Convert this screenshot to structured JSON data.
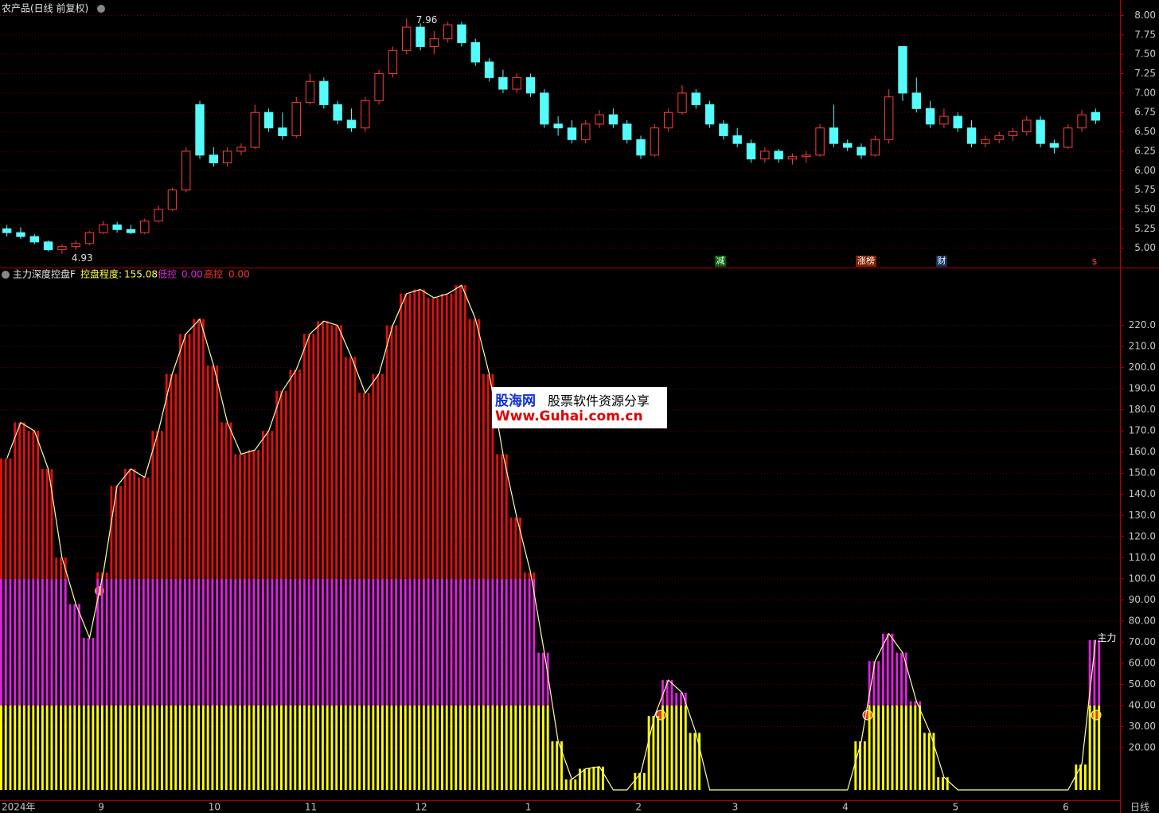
{
  "chart_data": [
    {
      "type": "candlestick",
      "title": "农产品(日线 前复权)",
      "categories": [
        "2024年",
        null,
        null,
        null,
        null,
        null,
        null,
        "9",
        null,
        null,
        null,
        null,
        null,
        null,
        null,
        "10",
        null,
        null,
        null,
        null,
        null,
        null,
        "11",
        null,
        null,
        null,
        null,
        null,
        null,
        null,
        "12",
        null,
        null,
        null,
        null,
        null,
        null,
        null,
        "1",
        null,
        null,
        null,
        null,
        null,
        null,
        null,
        "2",
        null,
        null,
        null,
        null,
        null,
        null,
        "3",
        null,
        null,
        null,
        null,
        null,
        null,
        null,
        "4",
        null,
        null,
        null,
        null,
        null,
        null,
        null,
        "5",
        null,
        null,
        null,
        null,
        null,
        null,
        null,
        "6",
        null,
        null
      ],
      "ohlc": [
        [
          5.25,
          5.3,
          5.15,
          5.2
        ],
        [
          5.2,
          5.27,
          5.12,
          5.15
        ],
        [
          5.15,
          5.18,
          5.05,
          5.08
        ],
        [
          5.08,
          5.1,
          4.96,
          4.98
        ],
        [
          4.98,
          5.05,
          4.93,
          5.02
        ],
        [
          5.02,
          5.1,
          4.98,
          5.06
        ],
        [
          5.06,
          5.22,
          5.04,
          5.2
        ],
        [
          5.2,
          5.35,
          5.18,
          5.3
        ],
        [
          5.3,
          5.34,
          5.2,
          5.24
        ],
        [
          5.24,
          5.3,
          5.18,
          5.2
        ],
        [
          5.2,
          5.38,
          5.18,
          5.35
        ],
        [
          5.35,
          5.55,
          5.33,
          5.5
        ],
        [
          5.5,
          5.78,
          5.48,
          5.75
        ],
        [
          5.75,
          6.3,
          5.72,
          6.25
        ],
        [
          6.85,
          6.9,
          6.15,
          6.2
        ],
        [
          6.2,
          6.3,
          6.05,
          6.1
        ],
        [
          6.1,
          6.3,
          6.05,
          6.25
        ],
        [
          6.25,
          6.35,
          6.2,
          6.3
        ],
        [
          6.3,
          6.85,
          6.28,
          6.75
        ],
        [
          6.75,
          6.8,
          6.5,
          6.55
        ],
        [
          6.55,
          6.75,
          6.4,
          6.45
        ],
        [
          6.45,
          6.95,
          6.42,
          6.88
        ],
        [
          6.88,
          7.25,
          6.85,
          7.15
        ],
        [
          7.15,
          7.2,
          6.8,
          6.85
        ],
        [
          6.85,
          6.9,
          6.6,
          6.65
        ],
        [
          6.65,
          6.8,
          6.5,
          6.55
        ],
        [
          6.55,
          6.95,
          6.5,
          6.9
        ],
        [
          6.9,
          7.3,
          6.85,
          7.25
        ],
        [
          7.25,
          7.6,
          7.2,
          7.55
        ],
        [
          7.55,
          7.96,
          7.5,
          7.85
        ],
        [
          7.85,
          7.9,
          7.55,
          7.6
        ],
        [
          7.6,
          7.8,
          7.5,
          7.7
        ],
        [
          7.7,
          7.92,
          7.65,
          7.88
        ],
        [
          7.88,
          7.92,
          7.6,
          7.65
        ],
        [
          7.65,
          7.7,
          7.35,
          7.4
        ],
        [
          7.4,
          7.45,
          7.15,
          7.2
        ],
        [
          7.2,
          7.3,
          7.0,
          7.05
        ],
        [
          7.05,
          7.25,
          7.0,
          7.2
        ],
        [
          7.2,
          7.25,
          6.95,
          7.0
        ],
        [
          7.0,
          7.05,
          6.55,
          6.6
        ],
        [
          6.6,
          6.7,
          6.45,
          6.55
        ],
        [
          6.55,
          6.65,
          6.35,
          6.4
        ],
        [
          6.4,
          6.65,
          6.35,
          6.6
        ],
        [
          6.6,
          6.78,
          6.55,
          6.72
        ],
        [
          6.72,
          6.8,
          6.55,
          6.6
        ],
        [
          6.6,
          6.65,
          6.35,
          6.4
        ],
        [
          6.4,
          6.45,
          6.15,
          6.2
        ],
        [
          6.2,
          6.6,
          6.18,
          6.55
        ],
        [
          6.55,
          6.8,
          6.5,
          6.75
        ],
        [
          6.75,
          7.1,
          6.72,
          7.0
        ],
        [
          7.0,
          7.05,
          6.8,
          6.85
        ],
        [
          6.85,
          6.9,
          6.55,
          6.6
        ],
        [
          6.6,
          6.65,
          6.4,
          6.45
        ],
        [
          6.45,
          6.55,
          6.3,
          6.35
        ],
        [
          6.35,
          6.4,
          6.1,
          6.15
        ],
        [
          6.15,
          6.3,
          6.1,
          6.25
        ],
        [
          6.25,
          6.28,
          6.1,
          6.15
        ],
        [
          6.15,
          6.22,
          6.08,
          6.18
        ],
        [
          6.18,
          6.25,
          6.1,
          6.2
        ],
        [
          6.2,
          6.6,
          6.18,
          6.55
        ],
        [
          6.55,
          6.85,
          6.3,
          6.35
        ],
        [
          6.35,
          6.4,
          6.25,
          6.3
        ],
        [
          6.3,
          6.35,
          6.15,
          6.2
        ],
        [
          6.2,
          6.45,
          6.18,
          6.4
        ],
        [
          6.4,
          7.05,
          6.35,
          6.95
        ],
        [
          7.6,
          7.6,
          6.9,
          7.0
        ],
        [
          7.0,
          7.2,
          6.75,
          6.8
        ],
        [
          6.8,
          6.9,
          6.55,
          6.6
        ],
        [
          6.6,
          6.8,
          6.55,
          6.7
        ],
        [
          6.7,
          6.75,
          6.5,
          6.55
        ],
        [
          6.55,
          6.65,
          6.3,
          6.35
        ],
        [
          6.35,
          6.45,
          6.3,
          6.4
        ],
        [
          6.4,
          6.5,
          6.35,
          6.45
        ],
        [
          6.45,
          6.55,
          6.38,
          6.5
        ],
        [
          6.5,
          6.7,
          6.45,
          6.65
        ],
        [
          6.65,
          6.7,
          6.3,
          6.35
        ],
        [
          6.35,
          6.4,
          6.22,
          6.3
        ],
        [
          6.3,
          6.6,
          6.28,
          6.55
        ],
        [
          6.55,
          6.78,
          6.5,
          6.72
        ],
        [
          6.75,
          6.8,
          6.6,
          6.65
        ]
      ],
      "up_color": "#ff3c3c",
      "down_color": "#54fcfc",
      "high_label": "7.96",
      "low_label": "4.93",
      "events": [
        "减",
        "涨榜",
        "财",
        "$"
      ],
      "ylim": [
        4.75,
        8.2
      ],
      "yticks": [
        {
          "value": 5,
          "label": "5.00"
        },
        {
          "value": 5.25,
          "label": "5.25"
        },
        {
          "value": 5.5,
          "label": "5.50"
        },
        {
          "value": 5.75,
          "label": "5.75"
        },
        {
          "value": 6,
          "label": "6.00"
        },
        {
          "value": 6.25,
          "label": "6.25"
        },
        {
          "value": 6.5,
          "label": "6.50"
        },
        {
          "value": 6.75,
          "label": "6.75"
        },
        {
          "value": 7,
          "label": "7.00"
        },
        {
          "value": 7.25,
          "label": "7.25"
        },
        {
          "value": 7.5,
          "label": "7.50"
        },
        {
          "value": 7.75,
          "label": "7.75"
        },
        {
          "value": 8,
          "label": "8.00"
        }
      ],
      "grid": true
    },
    {
      "type": "band-bar",
      "title": "主力深度控盘F",
      "legend": [
        {
          "name": "控盘程度:",
          "value": "155.08"
        },
        {
          "name": "低控",
          "value": "0.00"
        },
        {
          "name": "高控",
          "value": "0.00"
        }
      ],
      "series": [
        {
          "name": "主力",
          "color": "#ffffa0",
          "values": [
            157,
            174,
            170,
            152,
            110,
            88,
            72,
            103,
            144,
            152,
            148,
            170,
            197,
            216,
            223,
            201,
            174,
            159,
            161,
            170,
            189,
            199,
            216,
            222,
            220,
            205,
            188,
            197,
            220,
            235,
            237,
            233,
            235,
            239,
            223,
            197,
            159,
            129,
            103,
            65,
            23,
            5,
            10,
            11,
            0,
            0,
            8,
            35,
            52,
            46,
            27,
            0,
            0,
            0,
            0,
            0,
            0,
            0,
            0,
            0,
            0,
            0,
            23,
            61,
            74,
            65,
            42,
            27,
            6,
            0,
            0,
            0,
            0,
            0,
            0,
            0,
            0,
            0,
            12,
            71
          ]
        }
      ],
      "bands": [
        40,
        100
      ],
      "band_colors": [
        "#ffff00",
        "#e020e0",
        "#e01010"
      ],
      "ylim": [
        0,
        247
      ],
      "yticks": [
        {
          "value": 20,
          "label": "20.00"
        },
        {
          "value": 30,
          "label": "30.00"
        },
        {
          "value": 40,
          "label": "40.00"
        },
        {
          "value": 50,
          "label": "50.00"
        },
        {
          "value": 60,
          "label": "60.00"
        },
        {
          "value": 70,
          "label": "70.00"
        },
        {
          "value": 80,
          "label": "80.00"
        },
        {
          "value": 90,
          "label": "90.00"
        },
        {
          "value": 100,
          "label": "100.0"
        },
        {
          "value": 110,
          "label": "110.0"
        },
        {
          "value": 120,
          "label": "120.0"
        },
        {
          "value": 130,
          "label": "130.0"
        },
        {
          "value": 140,
          "label": "140.0"
        },
        {
          "value": 150,
          "label": "150.0"
        },
        {
          "value": 160,
          "label": "160.0"
        },
        {
          "value": 170,
          "label": "170.0"
        },
        {
          "value": 180,
          "label": "180.0"
        },
        {
          "value": 190,
          "label": "190.0"
        },
        {
          "value": 200,
          "label": "200.0"
        },
        {
          "value": 210,
          "label": "210.0"
        },
        {
          "value": 220,
          "label": "220.0"
        }
      ],
      "grid": true
    }
  ],
  "period": "日线",
  "watermark": {
    "brand": "股海网",
    "slogan": "股票软件资源分享",
    "url": "Www.Guhai.com.cn"
  }
}
